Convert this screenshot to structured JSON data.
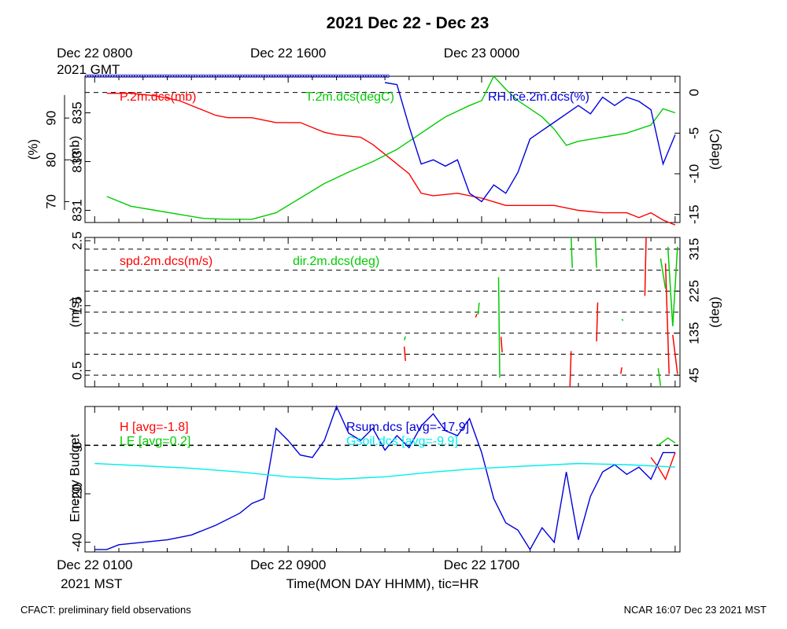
{
  "title": "2021 Dec 22 - Dec 23",
  "footer": {
    "left": "CFACT: preliminary field observations",
    "right": "NCAR 16:07 Dec 23 2021 MST"
  },
  "colors": {
    "red": "#ff0000",
    "green": "#00cc00",
    "blue": "#0000dd",
    "cyan": "#00eeee",
    "black": "#000000"
  },
  "top_axis": {
    "labels": [
      {
        "hour": 0,
        "line1": "Dec 22 0800",
        "line2": "2021 GMT"
      },
      {
        "hour": 8,
        "line1": "Dec 22 1600",
        "line2": ""
      },
      {
        "hour": 16,
        "line1": "Dec 23 0000",
        "line2": ""
      }
    ]
  },
  "bottom_axis": {
    "xlabel": "Time(MON DAY HHMM), tic=HR",
    "labels": [
      {
        "hour": 0,
        "line1": "Dec 22 0100",
        "line2": "2021 MST"
      },
      {
        "hour": 8,
        "line1": "Dec 22 0900",
        "line2": ""
      },
      {
        "hour": 16,
        "line1": "Dec 22 1700",
        "line2": ""
      }
    ]
  },
  "chart_data": [
    {
      "type": "line",
      "panel": "state",
      "x_unit": "hours since Dec 22 0100 MST",
      "xlim": [
        -0.4,
        24.2
      ],
      "axes": {
        "pressure": {
          "label": "(mb)",
          "ylim": [
            830.5,
            836.5
          ],
          "ticks": [
            831,
            833,
            835
          ]
        },
        "rh": {
          "label": "(%)",
          "ylim": [
            65,
            100
          ],
          "ticks": [
            70,
            80,
            90
          ]
        },
        "temp": {
          "label": "(degC)",
          "ylim": [
            -16,
            2
          ],
          "ticks": [
            0,
            -5,
            -10,
            -15
          ]
        }
      },
      "ref_line_temp": 0,
      "series": [
        {
          "name": "P.2m.dcs(mb)",
          "axis": "pressure",
          "color": "red",
          "x": [
            0.5,
            1.5,
            2.5,
            3.5,
            4.5,
            5.0,
            5.5,
            6.5,
            7.5,
            8.5,
            9.0,
            9.5,
            10.0,
            11.0,
            11.5,
            12.0,
            12.5,
            13.0,
            13.5,
            14.0,
            15.0,
            16.0,
            17.0,
            18.0,
            19.0,
            20.0,
            21.0,
            22.0,
            22.5,
            23.0,
            23.5,
            24.0
          ],
          "y": [
            835.8,
            835.8,
            835.7,
            835.5,
            835.1,
            834.9,
            834.8,
            834.8,
            834.6,
            834.6,
            834.4,
            834.2,
            834.1,
            834.0,
            833.7,
            833.3,
            832.9,
            832.5,
            831.7,
            831.6,
            831.7,
            831.5,
            831.2,
            831.2,
            831.2,
            831.0,
            830.9,
            830.9,
            830.7,
            830.9,
            830.6,
            830.4
          ]
        },
        {
          "name": "T.2m.dcs(degC)",
          "axis": "temp",
          "color": "green",
          "x": [
            0.5,
            1.5,
            2.5,
            3.5,
            4.5,
            5.5,
            6.5,
            7.5,
            8.5,
            9.5,
            10.5,
            11.5,
            12.5,
            13.0,
            13.5,
            14.0,
            14.5,
            15.0,
            15.5,
            16.0,
            16.5,
            17.0,
            17.5,
            18.0,
            18.5,
            19.0,
            19.5,
            20.0,
            21.0,
            22.0,
            23.0,
            23.5,
            24.0
          ],
          "y": [
            -12.8,
            -14.0,
            -14.5,
            -15.0,
            -15.5,
            -15.6,
            -15.6,
            -14.8,
            -13.0,
            -11.2,
            -9.8,
            -8.5,
            -7.0,
            -6.0,
            -5.0,
            -4.0,
            -3.0,
            -2.3,
            -1.6,
            -1.0,
            2.0,
            0.4,
            -1.0,
            -2.0,
            -3.0,
            -4.5,
            -6.5,
            -6.0,
            -5.5,
            -5.0,
            -4.0,
            -2.0,
            -2.5
          ]
        },
        {
          "name": "RH.ice.2m.dcs(%)",
          "axis": "rh",
          "color": "blue",
          "x": [
            12.0,
            12.5,
            13.0,
            13.5,
            14.0,
            14.5,
            15.0,
            15.5,
            16.0,
            16.5,
            17.0,
            17.5,
            18.0,
            18.5,
            19.0,
            19.5,
            20.0,
            20.5,
            21.0,
            21.5,
            22.0,
            22.5,
            23.0,
            23.5,
            24.0
          ],
          "y": [
            98.5,
            98.0,
            88.0,
            79.0,
            80.0,
            78.5,
            80.0,
            72.0,
            70.0,
            74.0,
            72.0,
            77.0,
            85.0,
            87.0,
            89.0,
            91.0,
            93.0,
            91.0,
            95.0,
            93.0,
            95.0,
            94.0,
            92.0,
            79.0,
            86.0
          ]
        }
      ]
    },
    {
      "type": "line",
      "panel": "wind",
      "x_unit": "hours since Dec 22 0100 MST",
      "xlim": [
        -0.4,
        24.2
      ],
      "axes": {
        "speed": {
          "label": "(m/s)",
          "ylim": [
            0.25,
            2.55
          ],
          "ticks": [
            0.5,
            1.5,
            2.5
          ]
        },
        "direction": {
          "label": "(deg)",
          "ylim": [
            20,
            340
          ],
          "ticks": [
            45,
            135,
            225,
            315
          ]
        }
      },
      "ref_lines_direction": [
        45,
        90,
        135,
        180,
        225,
        270,
        315
      ],
      "series": [
        {
          "name": "spd.2m.dcs(m/s)",
          "axis": "speed",
          "color": "red",
          "segments": [
            [
              [
                12.8,
                0.87
              ],
              [
                12.85,
                0.65
              ]
            ],
            [
              [
                15.8,
                1.37
              ],
              [
                15.75,
                1.32
              ]
            ],
            [
              [
                16.8,
                1.02
              ],
              [
                16.85,
                0.78
              ]
            ],
            [
              [
                19.7,
                0.8
              ],
              [
                19.65,
                0.25
              ]
            ],
            [
              [
                20.8,
                1.55
              ],
              [
                20.75,
                0.95
              ]
            ],
            [
              [
                21.8,
                0.55
              ],
              [
                21.75,
                0.45
              ]
            ],
            [
              [
                22.8,
                2.55
              ],
              [
                22.75,
                1.65
              ]
            ],
            [
              [
                23.6,
                2.15
              ],
              [
                23.75,
                0.45
              ]
            ],
            [
              [
                23.9,
                1.05
              ],
              [
                24.1,
                0.45
              ]
            ]
          ]
        },
        {
          "name": "dir.2m.dcs(deg)",
          "axis": "direction",
          "color": "green",
          "segments": [
            [
              [
                12.8,
                120
              ],
              [
                12.85,
                128
              ]
            ],
            [
              [
                15.9,
                200
              ],
              [
                15.85,
                175
              ]
            ],
            [
              [
                16.7,
                255
              ],
              [
                16.75,
                40
              ]
            ],
            [
              [
                19.7,
                340
              ],
              [
                19.75,
                275
              ]
            ],
            [
              [
                20.7,
                340
              ],
              [
                20.75,
                275
              ]
            ],
            [
              [
                21.8,
                165
              ],
              [
                21.85,
                162
              ]
            ],
            [
              [
                23.3,
                60
              ],
              [
                23.4,
                22
              ]
            ],
            [
              [
                23.4,
                295
              ],
              [
                23.6,
                230
              ]
            ],
            [
              [
                23.7,
                320
              ],
              [
                23.9,
                150
              ]
            ],
            [
              [
                23.9,
                150
              ],
              [
                24.1,
                320
              ]
            ]
          ]
        }
      ]
    },
    {
      "type": "line",
      "panel": "energy",
      "x_unit": "hours since Dec 22 0100 MST",
      "xlim": [
        -0.4,
        24.2
      ],
      "ylabel": "Energy Budget",
      "ylim": [
        -44,
        16
      ],
      "yticks": [
        -40,
        -20,
        0
      ],
      "ref_line": 0,
      "series": [
        {
          "name": "H",
          "avg_label": "[avg=-1.8]",
          "color": "red",
          "x": [
            23.0,
            23.3,
            23.6,
            24.0
          ],
          "y": [
            -5,
            -9,
            -14,
            -3
          ]
        },
        {
          "name": "LE",
          "avg_label": "[avg=0.2]",
          "color": "green",
          "x": [
            23.3,
            23.7,
            24.0
          ],
          "y": [
            0,
            3,
            1
          ]
        },
        {
          "name": "Rsum.dcs",
          "avg_label": "[avg=-17.9]",
          "color": "blue",
          "x": [
            0.0,
            0.5,
            1.0,
            2.0,
            3.0,
            4.0,
            5.0,
            6.0,
            6.5,
            7.0,
            7.5,
            8.0,
            8.5,
            9.0,
            9.5,
            10.0,
            10.5,
            11.0,
            11.5,
            12.0,
            12.5,
            13.0,
            13.5,
            14.0,
            14.5,
            15.0,
            15.5,
            16.0,
            16.5,
            17.0,
            17.5,
            18.0,
            18.5,
            19.0,
            19.5,
            20.0,
            20.5,
            21.0,
            21.5,
            22.0,
            22.5,
            23.0,
            23.5,
            24.0
          ],
          "y": [
            -43,
            -43,
            -41,
            -40,
            -39,
            -37,
            -33,
            -28,
            -24,
            -22,
            7,
            2,
            -4,
            -5,
            2,
            16,
            5,
            2,
            7,
            -2,
            4,
            -1,
            8,
            13,
            6,
            4,
            11,
            -3,
            -22,
            -32,
            -35,
            -43,
            -34,
            -40,
            -11,
            -39,
            -21,
            -11,
            -8,
            -12,
            -9,
            -14,
            -3,
            -3
          ]
        },
        {
          "name": "Gsoil.dcs",
          "avg_label": "[avg=-9.9]",
          "color": "cyan",
          "x": [
            0.0,
            2.0,
            4.0,
            6.0,
            8.0,
            10.0,
            12.0,
            14.0,
            16.0,
            18.0,
            20.0,
            22.0,
            24.0
          ],
          "y": [
            -7.5,
            -8.5,
            -9.5,
            -11,
            -13,
            -14,
            -13,
            -11,
            -9.5,
            -8.5,
            -7.5,
            -8,
            -9
          ]
        }
      ]
    }
  ]
}
